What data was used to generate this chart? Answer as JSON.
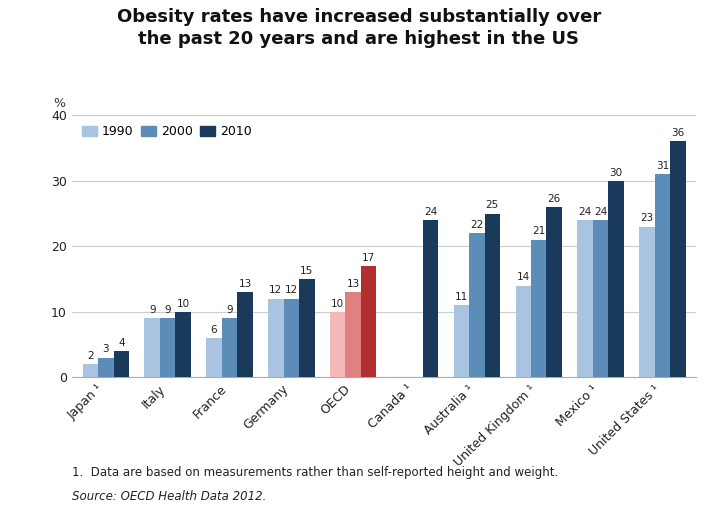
{
  "title": "Obesity rates have increased substantially over\nthe past 20 years and are highest in the US",
  "categories": [
    "Japan ¹",
    "Italy",
    "France",
    "Germany",
    "OECD",
    "Canada ¹",
    "Australia ¹",
    "United Kingdom ¹",
    "Mexico ¹",
    "United States ¹"
  ],
  "values_1990": [
    2,
    9,
    6,
    12,
    10,
    null,
    11,
    14,
    24,
    23
  ],
  "values_2000": [
    3,
    9,
    9,
    12,
    13,
    null,
    22,
    21,
    24,
    31
  ],
  "values_2010": [
    4,
    10,
    13,
    15,
    17,
    24,
    25,
    26,
    30,
    36
  ],
  "labels_1990": [
    "2",
    "9",
    "6",
    "12",
    "10",
    "",
    "11",
    "14",
    "24",
    "23"
  ],
  "labels_2000": [
    "3",
    "9",
    "9",
    "12",
    "13",
    "",
    "22",
    "21",
    "24",
    "31"
  ],
  "labels_2010": [
    "4",
    "10",
    "13",
    "15",
    "17",
    "24",
    "25",
    "26",
    "30",
    "36"
  ],
  "color_1990": "#a8c4e0",
  "color_2000": "#5b8db8",
  "color_2010": "#1a3a5c",
  "color_oecd_1990": "#f4b8b8",
  "color_oecd_2000": "#e08080",
  "color_oecd_2010": "#b03030",
  "ylabel": "%",
  "ylim": [
    0,
    40
  ],
  "yticks": [
    0,
    10,
    20,
    30,
    40
  ],
  "footnote_line1": "1.  Data are based on measurements rather than self-reported height and weight.",
  "footnote_line2": "Source: OECD Health Data 2012.",
  "legend_labels": [
    "1990",
    "2000",
    "2010"
  ],
  "background_color": "#ffffff"
}
